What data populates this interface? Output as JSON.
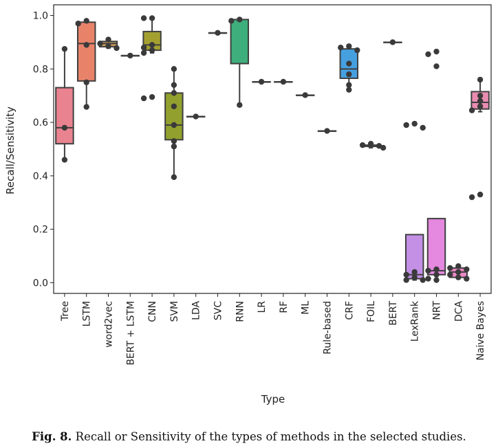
{
  "chart_data": {
    "type": "box",
    "xlabel": "Type",
    "ylabel": "Recall/Sensitivity",
    "ylim": [
      -0.04,
      1.04
    ],
    "yticks": [
      "0.0",
      "0.2",
      "0.4",
      "0.6",
      "0.8",
      "1.0"
    ],
    "ytick_values": [
      0.0,
      0.2,
      0.4,
      0.6,
      0.8,
      1.0
    ],
    "grid": false,
    "categories": [
      {
        "name": "Tree",
        "color": "#e8838f",
        "q1": 0.52,
        "median": 0.58,
        "q3": 0.73,
        "low": 0.46,
        "high": 0.875,
        "points": [
          0.875,
          0.58,
          0.46
        ]
      },
      {
        "name": "LSTM",
        "color": "#e8836a",
        "q1": 0.755,
        "median": 0.895,
        "q3": 0.975,
        "low": 0.658,
        "high": 0.982,
        "points": [
          0.98,
          0.97,
          0.89,
          0.75,
          0.658
        ]
      },
      {
        "name": "word2vec",
        "color": "#c99a58",
        "q1": 0.883,
        "median": 0.895,
        "q3": 0.903,
        "low": 0.878,
        "high": 0.91,
        "points": [
          0.91,
          0.895,
          0.885,
          0.878
        ]
      },
      {
        "name": "BERT + LSTM",
        "color": "#b8a050",
        "q1": 0.85,
        "median": 0.85,
        "q3": 0.85,
        "low": 0.85,
        "high": 0.85,
        "points": [
          0.85
        ]
      },
      {
        "name": "CNN",
        "color": "#a4a030",
        "q1": 0.87,
        "median": 0.89,
        "q3": 0.94,
        "low": 0.86,
        "high": 0.99,
        "points": [
          0.99,
          0.99,
          0.89,
          0.88,
          0.87,
          0.86,
          0.695,
          0.69
        ]
      },
      {
        "name": "SVM",
        "color": "#92a02e",
        "q1": 0.535,
        "median": 0.59,
        "q3": 0.71,
        "low": 0.395,
        "high": 0.8,
        "points": [
          0.8,
          0.74,
          0.71,
          0.66,
          0.59,
          0.53,
          0.51,
          0.395
        ]
      },
      {
        "name": "LDA",
        "color": "#6aae50",
        "q1": 0.622,
        "median": 0.622,
        "q3": 0.622,
        "low": 0.622,
        "high": 0.622,
        "points": [
          0.622
        ]
      },
      {
        "name": "SVC",
        "color": "#4cae64",
        "q1": 0.935,
        "median": 0.935,
        "q3": 0.935,
        "low": 0.935,
        "high": 0.935,
        "points": [
          0.935
        ]
      },
      {
        "name": "RNN",
        "color": "#3eae7c",
        "q1": 0.82,
        "median": 0.82,
        "q3": 0.985,
        "low": 0.665,
        "high": 0.985,
        "points": [
          0.985,
          0.98,
          0.665
        ]
      },
      {
        "name": "LR",
        "color": "#3eae96",
        "q1": 0.752,
        "median": 0.752,
        "q3": 0.752,
        "low": 0.752,
        "high": 0.752,
        "points": [
          0.752
        ]
      },
      {
        "name": "RF",
        "color": "#3eaaac",
        "q1": 0.752,
        "median": 0.752,
        "q3": 0.752,
        "low": 0.752,
        "high": 0.752,
        "points": [
          0.752
        ]
      },
      {
        "name": "ML",
        "color": "#3ea8be",
        "q1": 0.702,
        "median": 0.702,
        "q3": 0.702,
        "low": 0.702,
        "high": 0.702,
        "points": [
          0.702
        ]
      },
      {
        "name": "Rule-based",
        "color": "#40a4d2",
        "q1": 0.568,
        "median": 0.568,
        "q3": 0.568,
        "low": 0.568,
        "high": 0.568,
        "points": [
          0.568
        ]
      },
      {
        "name": "CRF",
        "color": "#46a0e0",
        "q1": 0.765,
        "median": 0.8,
        "q3": 0.875,
        "low": 0.72,
        "high": 0.885,
        "points": [
          0.885,
          0.88,
          0.87,
          0.82,
          0.78,
          0.74,
          0.722
        ]
      },
      {
        "name": "FOIL",
        "color": "#7c9ae4",
        "q1": 0.51,
        "median": 0.512,
        "q3": 0.515,
        "low": 0.505,
        "high": 0.52,
        "points": [
          0.52,
          0.515,
          0.512,
          0.505
        ]
      },
      {
        "name": "BERT",
        "color": "#9a90e6",
        "q1": 0.9,
        "median": 0.9,
        "q3": 0.9,
        "low": 0.9,
        "high": 0.9,
        "points": [
          0.9
        ]
      },
      {
        "name": "LexRank",
        "color": "#c390e6",
        "q1": 0.015,
        "median": 0.03,
        "q3": 0.18,
        "low": 0.01,
        "high": 0.18,
        "points": [
          0.595,
          0.59,
          0.58,
          0.04,
          0.03,
          0.02,
          0.01,
          0.01
        ]
      },
      {
        "name": "NRT",
        "color": "#e488e0",
        "q1": 0.03,
        "median": 0.045,
        "q3": 0.24,
        "low": 0.01,
        "high": 0.24,
        "points": [
          0.865,
          0.855,
          0.81,
          0.05,
          0.045,
          0.03,
          0.015,
          0.01
        ]
      },
      {
        "name": "DCA",
        "color": "#ec88c6",
        "q1": 0.02,
        "median": 0.04,
        "q3": 0.055,
        "low": 0.015,
        "high": 0.06,
        "points": [
          0.062,
          0.055,
          0.05,
          0.04,
          0.03,
          0.02,
          0.015
        ]
      },
      {
        "name": "Naive Bayes",
        "color": "#ea8cb2",
        "q1": 0.65,
        "median": 0.675,
        "q3": 0.715,
        "low": 0.64,
        "high": 0.76,
        "points": [
          0.76,
          0.7,
          0.68,
          0.66,
          0.645,
          0.33,
          0.32
        ]
      }
    ]
  },
  "caption": {
    "label": "Fig. 8.",
    "text": " Recall or Sensitivity of the types of methods in the selected studies."
  }
}
